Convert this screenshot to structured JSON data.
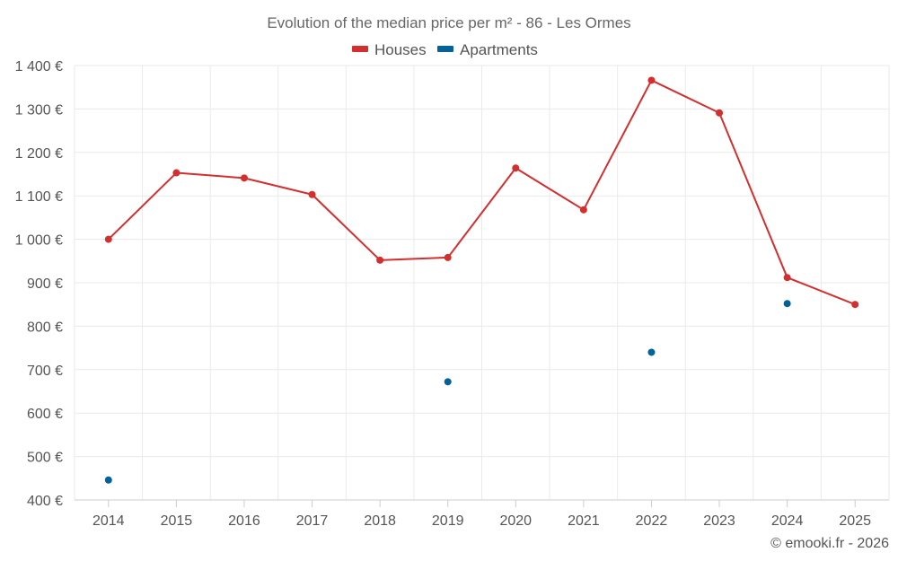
{
  "chart_data": {
    "type": "line",
    "title": "Evolution of the median price per m² - 86 - Les Ormes",
    "categories": [
      "2014",
      "2015",
      "2016",
      "2017",
      "2018",
      "2019",
      "2020",
      "2021",
      "2022",
      "2023",
      "2024",
      "2025"
    ],
    "series": [
      {
        "name": "Houses",
        "color": "#d32f2f",
        "style": "line-with-markers",
        "values": [
          1000,
          1153,
          1141,
          1103,
          952,
          958,
          1164,
          1068,
          1366,
          1291,
          912,
          850
        ]
      },
      {
        "name": "Apartments",
        "color": "#03629a",
        "style": "markers-only",
        "values": [
          446,
          null,
          null,
          null,
          null,
          672,
          null,
          null,
          740,
          null,
          852,
          null
        ]
      }
    ],
    "ylim": [
      400,
      1400
    ],
    "yticks": [
      400,
      500,
      600,
      700,
      800,
      900,
      1000,
      1100,
      1200,
      1300,
      1400
    ],
    "ytick_labels": [
      "400 €",
      "500 €",
      "600 €",
      "700 €",
      "800 €",
      "900 €",
      "1 000 €",
      "1 100 €",
      "1 200 €",
      "1 300 €",
      "1 400 €"
    ],
    "xlabel": "",
    "ylabel": "",
    "grid": true,
    "legend_position": "top-center",
    "credit": "© emooki.fr - 2026"
  }
}
